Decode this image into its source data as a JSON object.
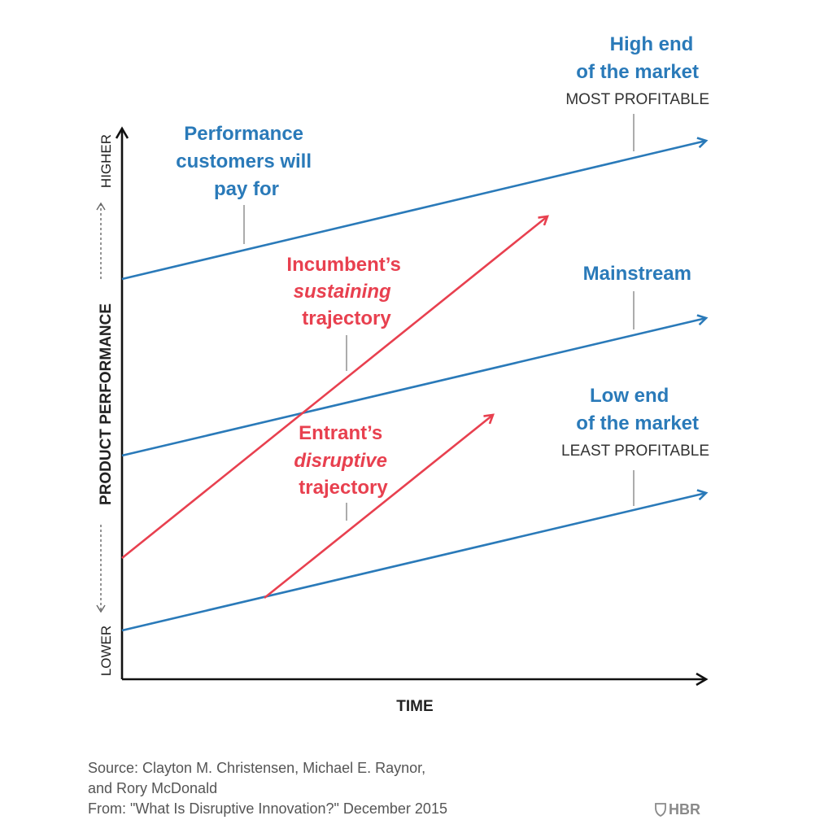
{
  "labels": {
    "performance_line": [
      "Performance",
      "customers will",
      "pay for"
    ],
    "high_end": [
      "High end",
      "of the market"
    ],
    "high_end_note": "MOST PROFITABLE",
    "mainstream": "Mainstream",
    "low_end": [
      "Low end",
      "of the market"
    ],
    "low_end_note": "LEAST PROFITABLE",
    "incumbent": [
      "Incumbent’s",
      "sustaining",
      "trajectory"
    ],
    "entrant": [
      "Entrant’s",
      "disruptive",
      "trajectory"
    ]
  },
  "axes": {
    "x_label": "TIME",
    "y_label": "PRODUCT PERFORMANCE",
    "y_low": "LOWER",
    "y_high": "HIGHER"
  },
  "source": [
    "Source: Clayton M. Christensen, Michael E. Raynor,",
    "and Rory McDonald",
    "From: \"What Is Disruptive Innovation?\" December 2015"
  ],
  "brand": "HBR",
  "colors": {
    "blue": "#2a7ab9",
    "red": "#e8404f",
    "axis": "#111111"
  }
}
